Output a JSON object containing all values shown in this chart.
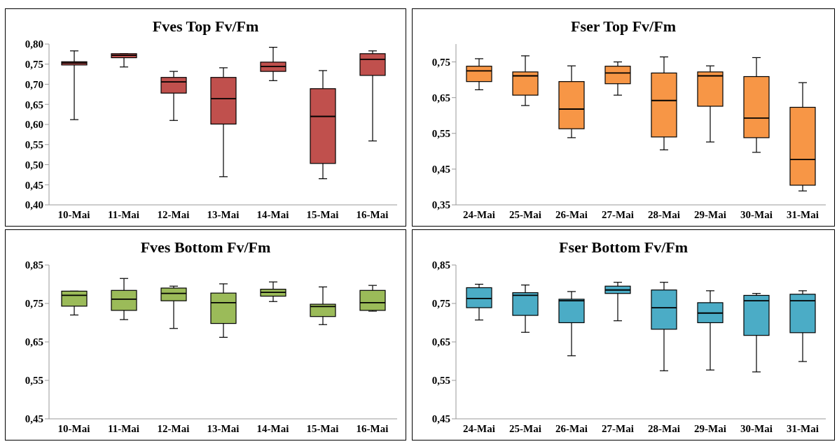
{
  "chart_data": [
    {
      "type": "box",
      "title": "Fves Top Fv/Fm",
      "categories": [
        "10-Mai",
        "11-Mai",
        "12-Mai",
        "13-Mai",
        "14-Mai",
        "15-Mai",
        "16-Mai"
      ],
      "ylim": [
        0.4,
        0.8
      ],
      "yticks": [
        {
          "value": 0.4,
          "label": "0,40"
        },
        {
          "value": 0.45,
          "label": "0,45"
        },
        {
          "value": 0.5,
          "label": "0,50"
        },
        {
          "value": 0.55,
          "label": "0,55"
        },
        {
          "value": 0.6,
          "label": "0,60"
        },
        {
          "value": 0.65,
          "label": "0,65"
        },
        {
          "value": 0.7,
          "label": "0,70"
        },
        {
          "value": 0.75,
          "label": "0,75"
        },
        {
          "value": 0.8,
          "label": "0,80"
        }
      ],
      "series": [
        {
          "color": "#c0504d",
          "boxes": [
            {
              "low": 0.612,
              "q1": 0.748,
              "median": 0.753,
              "q3": 0.756,
              "high": 0.783
            },
            {
              "low": 0.743,
              "q1": 0.766,
              "median": 0.772,
              "q3": 0.776,
              "high": 0.776
            },
            {
              "low": 0.61,
              "q1": 0.678,
              "median": 0.706,
              "q3": 0.717,
              "high": 0.732
            },
            {
              "low": 0.47,
              "q1": 0.601,
              "median": 0.664,
              "q3": 0.717,
              "high": 0.741
            },
            {
              "low": 0.709,
              "q1": 0.732,
              "median": 0.744,
              "q3": 0.755,
              "high": 0.792
            },
            {
              "low": 0.465,
              "q1": 0.503,
              "median": 0.62,
              "q3": 0.689,
              "high": 0.734
            },
            {
              "low": 0.559,
              "q1": 0.722,
              "median": 0.762,
              "q3": 0.776,
              "high": 0.783
            }
          ]
        }
      ]
    },
    {
      "type": "box",
      "title": "Fser Top Fv/Fm",
      "categories": [
        "24-Mai",
        "25-Mai",
        "26-Mai",
        "27-Mai",
        "28-Mai",
        "29-Mai",
        "30-Mai",
        "31-Mai"
      ],
      "ylim": [
        0.35,
        0.8
      ],
      "yticks": [
        {
          "value": 0.35,
          "label": "0,35"
        },
        {
          "value": 0.45,
          "label": "0,45"
        },
        {
          "value": 0.55,
          "label": "0,55"
        },
        {
          "value": 0.65,
          "label": "0,65"
        },
        {
          "value": 0.75,
          "label": "0,75"
        }
      ],
      "series": [
        {
          "color": "#f79646",
          "boxes": [
            {
              "low": 0.672,
              "q1": 0.695,
              "median": 0.725,
              "q3": 0.738,
              "high": 0.759
            },
            {
              "low": 0.628,
              "q1": 0.657,
              "median": 0.711,
              "q3": 0.722,
              "high": 0.767
            },
            {
              "low": 0.538,
              "q1": 0.563,
              "median": 0.618,
              "q3": 0.695,
              "high": 0.739
            },
            {
              "low": 0.657,
              "q1": 0.689,
              "median": 0.719,
              "q3": 0.738,
              "high": 0.75
            },
            {
              "low": 0.504,
              "q1": 0.54,
              "median": 0.642,
              "q3": 0.719,
              "high": 0.764
            },
            {
              "low": 0.526,
              "q1": 0.626,
              "median": 0.711,
              "q3": 0.722,
              "high": 0.739
            },
            {
              "low": 0.497,
              "q1": 0.538,
              "median": 0.593,
              "q3": 0.709,
              "high": 0.762
            },
            {
              "low": 0.389,
              "q1": 0.405,
              "median": 0.477,
              "q3": 0.623,
              "high": 0.692
            }
          ]
        }
      ]
    },
    {
      "type": "box",
      "title": "Fves Bottom Fv/Fm",
      "categories": [
        "10-Mai",
        "11-Mai",
        "12-Mai",
        "13-Mai",
        "14-Mai",
        "15-Mai",
        "16-Mai"
      ],
      "ylim": [
        0.45,
        0.85
      ],
      "yticks": [
        {
          "value": 0.45,
          "label": "0,45"
        },
        {
          "value": 0.55,
          "label": "0,55"
        },
        {
          "value": 0.65,
          "label": "0,65"
        },
        {
          "value": 0.75,
          "label": "0,75"
        },
        {
          "value": 0.85,
          "label": "0,85"
        }
      ],
      "series": [
        {
          "color": "#9bbb59",
          "boxes": [
            {
              "low": 0.72,
              "q1": 0.743,
              "median": 0.771,
              "q3": 0.782,
              "high": 0.782
            },
            {
              "low": 0.708,
              "q1": 0.732,
              "median": 0.761,
              "q3": 0.784,
              "high": 0.815
            },
            {
              "low": 0.685,
              "q1": 0.757,
              "median": 0.776,
              "q3": 0.79,
              "high": 0.795
            },
            {
              "low": 0.662,
              "q1": 0.698,
              "median": 0.752,
              "q3": 0.777,
              "high": 0.801
            },
            {
              "low": 0.755,
              "q1": 0.769,
              "median": 0.779,
              "q3": 0.787,
              "high": 0.806
            },
            {
              "low": 0.695,
              "q1": 0.716,
              "median": 0.742,
              "q3": 0.748,
              "high": 0.793
            },
            {
              "low": 0.73,
              "q1": 0.732,
              "median": 0.752,
              "q3": 0.784,
              "high": 0.797
            }
          ]
        }
      ]
    },
    {
      "type": "box",
      "title": "Fser Bottom Fv/Fm",
      "categories": [
        "24-Mai",
        "25-Mai",
        "26-Mai",
        "27-Mai",
        "28-Mai",
        "29-Mai",
        "30-Mai",
        "31-Mai"
      ],
      "ylim": [
        0.45,
        0.85
      ],
      "yticks": [
        {
          "value": 0.45,
          "label": "0,45"
        },
        {
          "value": 0.55,
          "label": "0,55"
        },
        {
          "value": 0.65,
          "label": "0,65"
        },
        {
          "value": 0.75,
          "label": "0,75"
        },
        {
          "value": 0.85,
          "label": "0,85"
        }
      ],
      "series": [
        {
          "color": "#4bacc6",
          "boxes": [
            {
              "low": 0.707,
              "q1": 0.739,
              "median": 0.763,
              "q3": 0.791,
              "high": 0.8
            },
            {
              "low": 0.675,
              "q1": 0.719,
              "median": 0.771,
              "q3": 0.778,
              "high": 0.798
            },
            {
              "low": 0.614,
              "q1": 0.7,
              "median": 0.757,
              "q3": 0.761,
              "high": 0.781
            },
            {
              "low": 0.705,
              "q1": 0.776,
              "median": 0.785,
              "q3": 0.795,
              "high": 0.805
            },
            {
              "low": 0.575,
              "q1": 0.683,
              "median": 0.739,
              "q3": 0.785,
              "high": 0.805
            },
            {
              "low": 0.577,
              "q1": 0.7,
              "median": 0.725,
              "q3": 0.752,
              "high": 0.783
            },
            {
              "low": 0.572,
              "q1": 0.667,
              "median": 0.757,
              "q3": 0.771,
              "high": 0.776
            },
            {
              "low": 0.599,
              "q1": 0.674,
              "median": 0.757,
              "q3": 0.774,
              "high": 0.783
            }
          ]
        }
      ]
    }
  ]
}
